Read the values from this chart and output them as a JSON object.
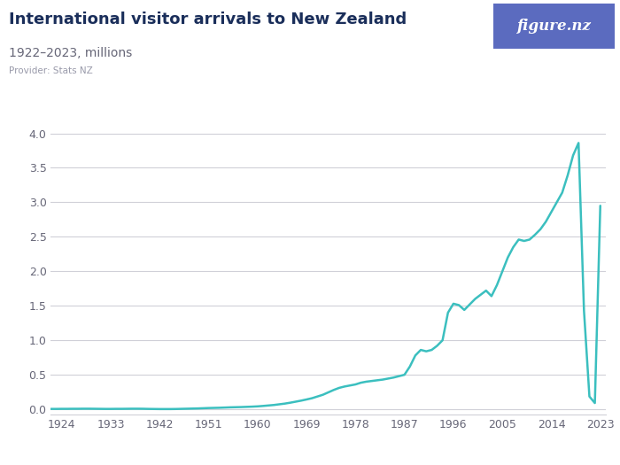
{
  "title": "International visitor arrivals to New Zealand",
  "subtitle": "1922–2023, millions",
  "provider": "Provider: Stats NZ",
  "line_color": "#3bbfbf",
  "background_color": "#ffffff",
  "grid_color": "#d0d0d8",
  "text_color": "#1a2e5a",
  "subtitle_color": "#666677",
  "provider_color": "#999aaa",
  "logo_bg": "#5b6bbf",
  "logo_text": "figure.nz",
  "xlim": [
    1922,
    2024
  ],
  "ylim": [
    -0.08,
    4.2
  ],
  "yticks": [
    0.0,
    0.5,
    1.0,
    1.5,
    2.0,
    2.5,
    3.0,
    3.5,
    4.0
  ],
  "xticks": [
    1924,
    1933,
    1942,
    1951,
    1960,
    1969,
    1978,
    1987,
    1996,
    2005,
    2014,
    2023
  ],
  "years": [
    1922,
    1923,
    1924,
    1925,
    1926,
    1927,
    1928,
    1929,
    1930,
    1931,
    1932,
    1933,
    1934,
    1935,
    1936,
    1937,
    1938,
    1939,
    1940,
    1941,
    1942,
    1943,
    1944,
    1945,
    1946,
    1947,
    1948,
    1949,
    1950,
    1951,
    1952,
    1953,
    1954,
    1955,
    1956,
    1957,
    1958,
    1959,
    1960,
    1961,
    1962,
    1963,
    1964,
    1965,
    1966,
    1967,
    1968,
    1969,
    1970,
    1971,
    1972,
    1973,
    1974,
    1975,
    1976,
    1977,
    1978,
    1979,
    1980,
    1981,
    1982,
    1983,
    1984,
    1985,
    1986,
    1987,
    1988,
    1989,
    1990,
    1991,
    1992,
    1993,
    1994,
    1995,
    1996,
    1997,
    1998,
    1999,
    2000,
    2001,
    2002,
    2003,
    2004,
    2005,
    2006,
    2007,
    2008,
    2009,
    2010,
    2011,
    2012,
    2013,
    2014,
    2015,
    2016,
    2017,
    2018,
    2019,
    2020,
    2021,
    2022,
    2023
  ],
  "values": [
    0.005,
    0.005,
    0.006,
    0.006,
    0.007,
    0.007,
    0.008,
    0.008,
    0.007,
    0.006,
    0.005,
    0.005,
    0.006,
    0.006,
    0.007,
    0.008,
    0.008,
    0.007,
    0.005,
    0.004,
    0.003,
    0.003,
    0.003,
    0.004,
    0.006,
    0.008,
    0.01,
    0.012,
    0.015,
    0.018,
    0.02,
    0.022,
    0.025,
    0.028,
    0.03,
    0.032,
    0.035,
    0.038,
    0.042,
    0.048,
    0.055,
    0.062,
    0.072,
    0.082,
    0.095,
    0.11,
    0.125,
    0.142,
    0.16,
    0.185,
    0.21,
    0.245,
    0.28,
    0.31,
    0.33,
    0.345,
    0.36,
    0.385,
    0.4,
    0.41,
    0.42,
    0.43,
    0.445,
    0.46,
    0.48,
    0.5,
    0.62,
    0.78,
    0.86,
    0.84,
    0.86,
    0.92,
    1.0,
    1.4,
    1.53,
    1.51,
    1.44,
    1.52,
    1.6,
    1.66,
    1.72,
    1.64,
    1.8,
    2.0,
    2.2,
    2.35,
    2.46,
    2.44,
    2.46,
    2.53,
    2.61,
    2.72,
    2.86,
    3.0,
    3.14,
    3.39,
    3.68,
    3.86,
    1.43,
    0.185,
    0.09,
    2.95
  ]
}
